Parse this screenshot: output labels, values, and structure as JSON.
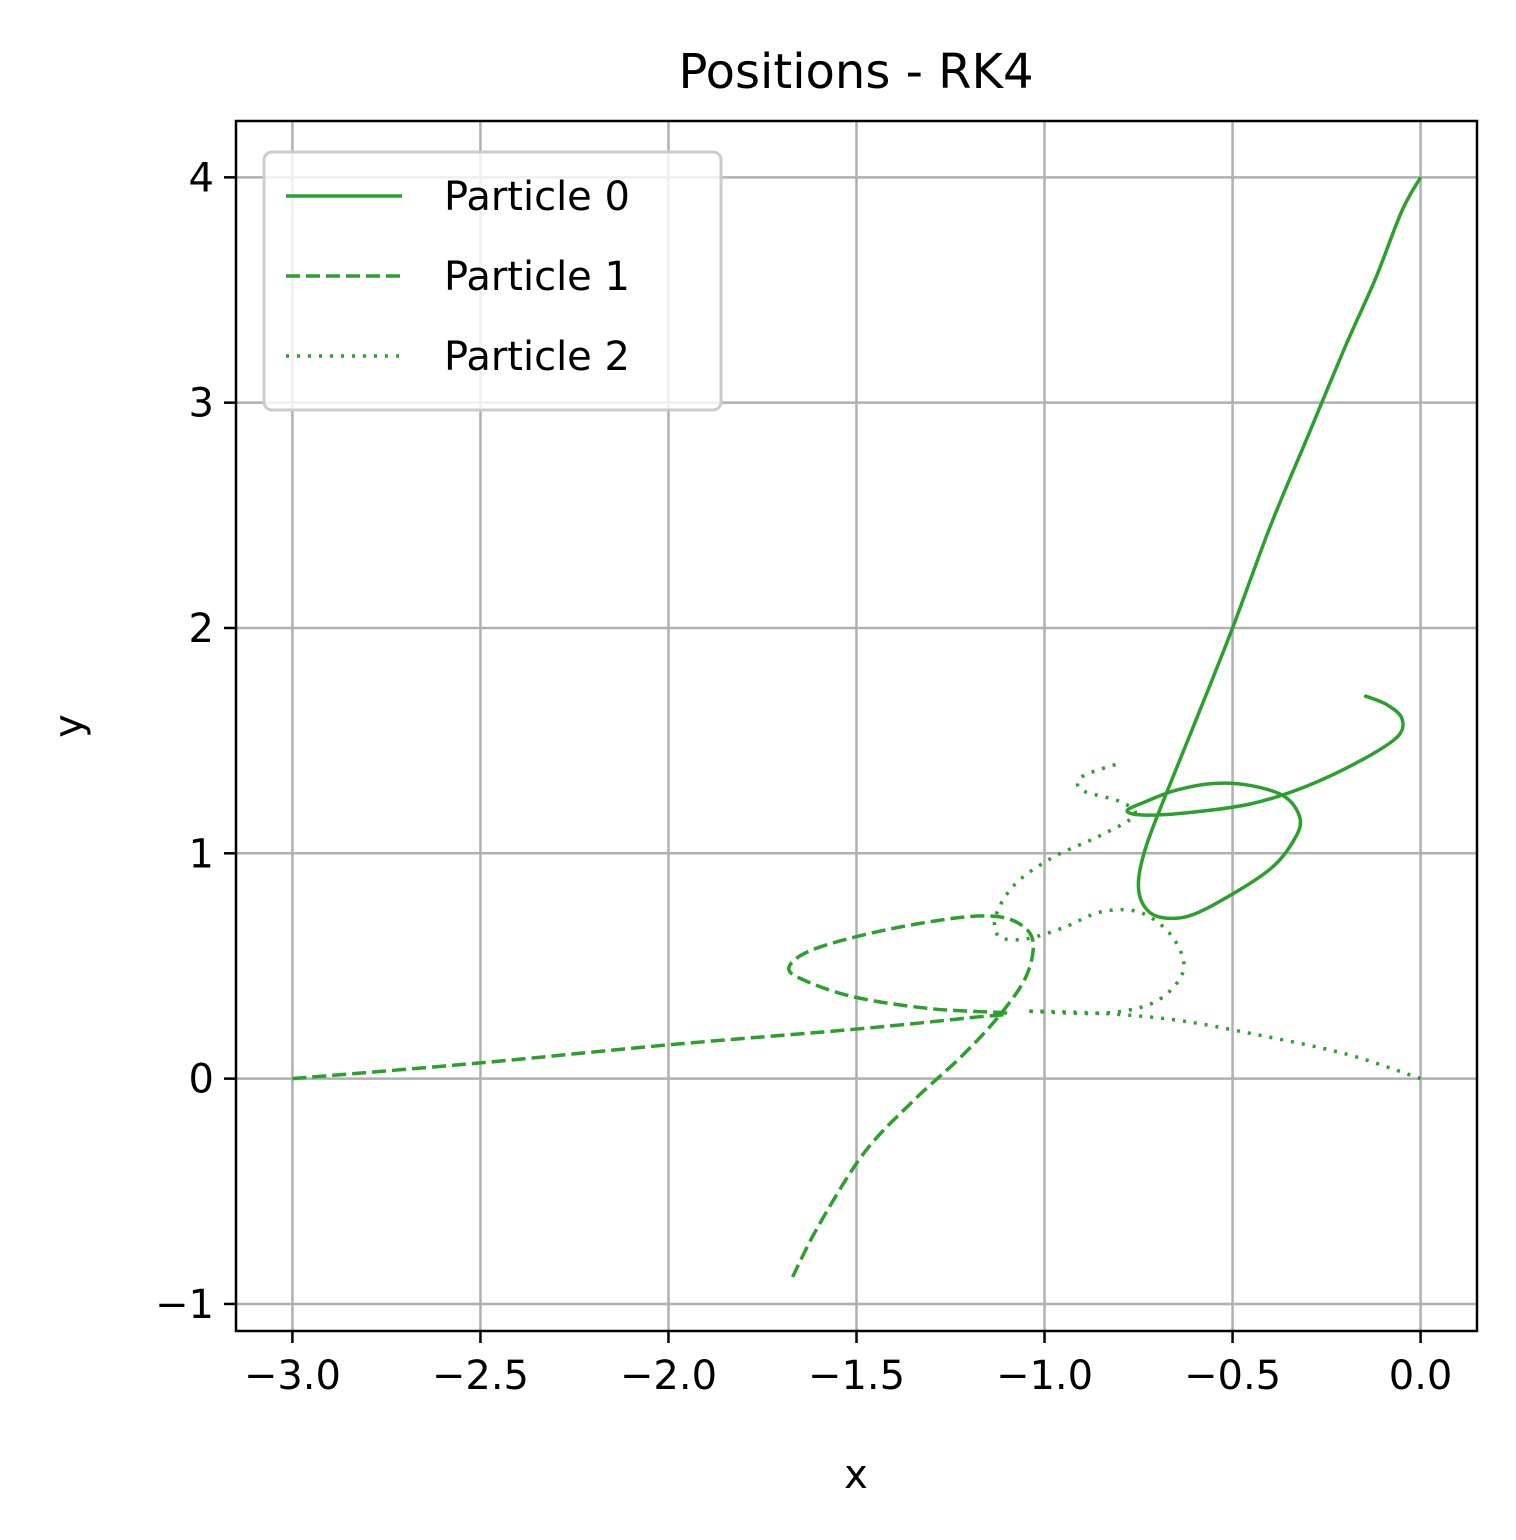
{
  "chart_data": {
    "type": "line",
    "title": "Positions - RK4",
    "xlabel": "x",
    "ylabel": "y",
    "xlim": [
      -3.15,
      0.15
    ],
    "ylim": [
      -1.12,
      4.25
    ],
    "xticks": [
      -3.0,
      -2.5,
      -2.0,
      -1.5,
      -1.0,
      -0.5,
      0.0
    ],
    "xtick_labels": [
      "−3.0",
      "−2.5",
      "−2.0",
      "−1.5",
      "−1.0",
      "−0.5",
      "0.0"
    ],
    "yticks": [
      -1,
      0,
      1,
      2,
      3,
      4
    ],
    "ytick_labels": [
      "−1",
      "0",
      "1",
      "2",
      "3",
      "4"
    ],
    "grid": true,
    "legend_position": "top-left",
    "color": "#2ca02c",
    "series": [
      {
        "name": "Particle 0",
        "style": "solid",
        "points": [
          [
            0.0,
            4.0
          ],
          [
            -0.05,
            3.85
          ],
          [
            -0.12,
            3.55
          ],
          [
            -0.2,
            3.25
          ],
          [
            -0.3,
            2.85
          ],
          [
            -0.4,
            2.45
          ],
          [
            -0.5,
            2.0
          ],
          [
            -0.6,
            1.58
          ],
          [
            -0.68,
            1.25
          ],
          [
            -0.73,
            1.03
          ],
          [
            -0.75,
            0.88
          ],
          [
            -0.74,
            0.78
          ],
          [
            -0.7,
            0.72
          ],
          [
            -0.62,
            0.72
          ],
          [
            -0.52,
            0.8
          ],
          [
            -0.4,
            0.93
          ],
          [
            -0.34,
            1.05
          ],
          [
            -0.32,
            1.15
          ],
          [
            -0.36,
            1.25
          ],
          [
            -0.45,
            1.3
          ],
          [
            -0.55,
            1.31
          ],
          [
            -0.65,
            1.28
          ],
          [
            -0.73,
            1.23
          ],
          [
            -0.78,
            1.19
          ],
          [
            -0.74,
            1.17
          ],
          [
            -0.62,
            1.18
          ],
          [
            -0.45,
            1.22
          ],
          [
            -0.3,
            1.3
          ],
          [
            -0.15,
            1.42
          ],
          [
            -0.06,
            1.52
          ],
          [
            -0.05,
            1.6
          ],
          [
            -0.09,
            1.66
          ],
          [
            -0.15,
            1.7
          ]
        ]
      },
      {
        "name": "Particle 1",
        "style": "dashed",
        "points": [
          [
            -3.0,
            0.0
          ],
          [
            -2.5,
            0.07
          ],
          [
            -2.0,
            0.15
          ],
          [
            -1.5,
            0.22
          ],
          [
            -1.2,
            0.27
          ],
          [
            -1.1,
            0.29
          ],
          [
            -1.3,
            0.31
          ],
          [
            -1.5,
            0.36
          ],
          [
            -1.63,
            0.43
          ],
          [
            -1.68,
            0.49
          ],
          [
            -1.62,
            0.57
          ],
          [
            -1.45,
            0.65
          ],
          [
            -1.25,
            0.71
          ],
          [
            -1.13,
            0.72
          ],
          [
            -1.06,
            0.68
          ],
          [
            -1.03,
            0.6
          ],
          [
            -1.05,
            0.45
          ],
          [
            -1.12,
            0.28
          ],
          [
            -1.22,
            0.1
          ],
          [
            -1.35,
            -0.1
          ],
          [
            -1.48,
            -0.33
          ],
          [
            -1.6,
            -0.65
          ],
          [
            -1.67,
            -0.88
          ]
        ]
      },
      {
        "name": "Particle 2",
        "style": "dotted",
        "points": [
          [
            0.0,
            0.0
          ],
          [
            -0.2,
            0.11
          ],
          [
            -0.45,
            0.2
          ],
          [
            -0.65,
            0.26
          ],
          [
            -0.85,
            0.29
          ],
          [
            -1.05,
            0.3
          ],
          [
            -0.85,
            0.29
          ],
          [
            -0.72,
            0.33
          ],
          [
            -0.65,
            0.42
          ],
          [
            -0.63,
            0.52
          ],
          [
            -0.67,
            0.65
          ],
          [
            -0.75,
            0.74
          ],
          [
            -0.85,
            0.74
          ],
          [
            -0.95,
            0.67
          ],
          [
            -1.05,
            0.62
          ],
          [
            -1.12,
            0.63
          ],
          [
            -1.13,
            0.72
          ],
          [
            -1.08,
            0.86
          ],
          [
            -0.98,
            0.98
          ],
          [
            -0.85,
            1.08
          ],
          [
            -0.76,
            1.17
          ],
          [
            -0.8,
            1.23
          ],
          [
            -0.9,
            1.28
          ],
          [
            -0.9,
            1.34
          ],
          [
            -0.8,
            1.4
          ]
        ]
      }
    ]
  }
}
